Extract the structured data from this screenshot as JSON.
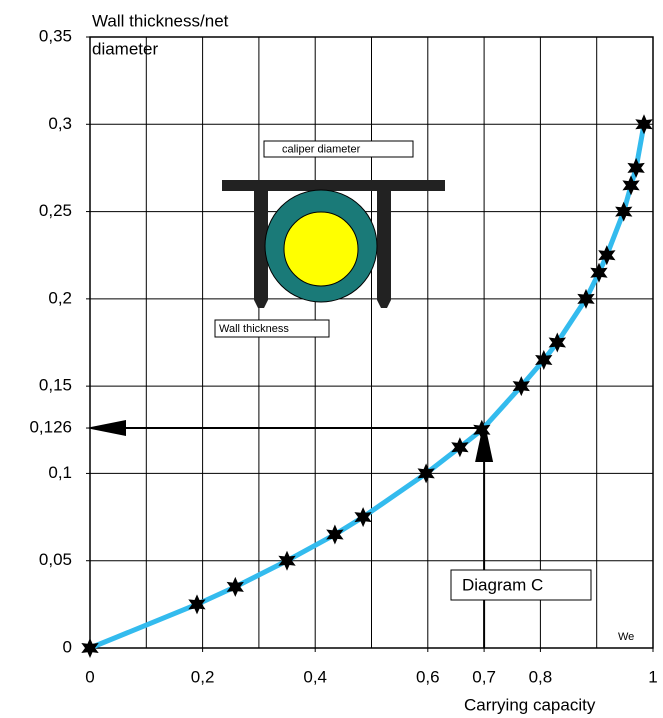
{
  "chart_data": {
    "type": "line",
    "ylabel": [
      "Wall thickness/net",
      "diameter"
    ],
    "xlabel": "Carrying capacity",
    "x": [
      0,
      0.19,
      0.258,
      0.35,
      0.435,
      0.485,
      0.597,
      0.657,
      0.696,
      0.766,
      0.806,
      0.83,
      0.881,
      0.904,
      0.918,
      0.948,
      0.961,
      0.97,
      0.984
    ],
    "values": [
      0,
      0.025,
      0.035,
      0.05,
      0.065,
      0.075,
      0.1,
      0.115,
      0.125,
      0.15,
      0.165,
      0.175,
      0.2,
      0.215,
      0.225,
      0.25,
      0.265,
      0.275,
      0.3
    ],
    "color": "#33bbee",
    "marker_color": "#000000",
    "xlim": [
      0,
      1
    ],
    "ylim": [
      0,
      0.35
    ],
    "xticks": [
      0,
      {
        "value": 0.2,
        "label": "0,2"
      },
      {
        "value": 0.4,
        "label": "0,4"
      },
      {
        "value": 0.6,
        "label": "0,6"
      },
      {
        "value": 0.7,
        "label": "0,7"
      },
      {
        "value": 0.8,
        "label": "0,8"
      },
      1
    ],
    "yticks": [
      0,
      {
        "value": 0.05,
        "label": "0,05"
      },
      {
        "value": 0.1,
        "label": "0,1"
      },
      {
        "value": 0.15,
        "label": "0,15"
      },
      {
        "value": 0.2,
        "label": "0,2"
      },
      {
        "value": 0.25,
        "label": "0,25"
      },
      {
        "value": 0.3,
        "label": "0,3"
      },
      {
        "value": 0.35,
        "label": "0,35"
      },
      {
        "value": 0.126,
        "label": "0,126"
      }
    ],
    "xgrid": [
      0.1,
      0.2,
      0.3,
      0.4,
      0.5,
      0.6,
      0.7,
      0.8,
      0.9
    ],
    "ygrid": [
      0.05,
      0.1,
      0.15,
      0.2,
      0.25,
      0.3
    ],
    "annotations": [
      "Diagram C",
      "We"
    ],
    "figure_labels": [
      "caliper diameter",
      "Wall thickness"
    ]
  }
}
